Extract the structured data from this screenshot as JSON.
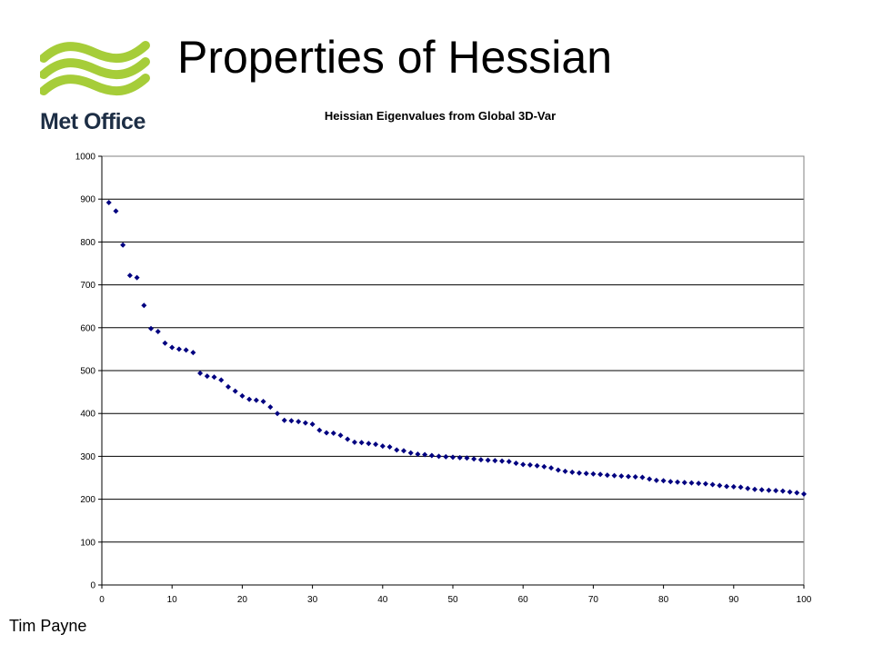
{
  "slide": {
    "title": "Properties of Hessian",
    "footer": "Tim Payne"
  },
  "logo": {
    "name": "Met Office",
    "icon": "met-office-wave-logo",
    "wave_color": "#a6cd39",
    "text_color": "#1d2e45"
  },
  "chart_data": {
    "type": "scatter",
    "title": "Heissian Eigenvalues from Global 3D-Var",
    "xlabel": "",
    "ylabel": "",
    "xlim": [
      0,
      100
    ],
    "ylim": [
      0,
      1000
    ],
    "x_ticks": [
      "0",
      "10",
      "20",
      "30",
      "40",
      "50",
      "60",
      "70",
      "80",
      "90",
      "100"
    ],
    "y_ticks": [
      "0",
      "100",
      "200",
      "300",
      "400",
      "500",
      "600",
      "700",
      "800",
      "900",
      "1000"
    ],
    "grid": "horizontal",
    "legend": "none",
    "marker": "diamond",
    "marker_color": "#000080",
    "x": [
      1,
      2,
      3,
      4,
      5,
      6,
      7,
      8,
      9,
      10,
      11,
      12,
      13,
      14,
      15,
      16,
      17,
      18,
      19,
      20,
      21,
      22,
      23,
      24,
      25,
      26,
      27,
      28,
      29,
      30,
      31,
      32,
      33,
      34,
      35,
      36,
      37,
      38,
      39,
      40,
      41,
      42,
      43,
      44,
      45,
      46,
      47,
      48,
      49,
      50,
      51,
      52,
      53,
      54,
      55,
      56,
      57,
      58,
      59,
      60,
      61,
      62,
      63,
      64,
      65,
      66,
      67,
      68,
      69,
      70,
      71,
      72,
      73,
      74,
      75,
      76,
      77,
      78,
      79,
      80,
      81,
      82,
      83,
      84,
      85,
      86,
      87,
      88,
      89,
      90,
      91,
      92,
      93,
      94,
      95,
      96,
      97,
      98,
      99,
      100
    ],
    "y": [
      892,
      872,
      793,
      722,
      717,
      652,
      598,
      591,
      564,
      554,
      550,
      548,
      542,
      494,
      487,
      485,
      478,
      462,
      452,
      441,
      433,
      431,
      428,
      415,
      400,
      384,
      383,
      381,
      378,
      375,
      361,
      355,
      354,
      349,
      340,
      333,
      332,
      330,
      328,
      324,
      322,
      315,
      313,
      308,
      305,
      304,
      302,
      300,
      299,
      298,
      297,
      296,
      294,
      292,
      291,
      290,
      289,
      288,
      284,
      281,
      280,
      278,
      276,
      273,
      268,
      265,
      263,
      261,
      260,
      259,
      258,
      256,
      255,
      254,
      253,
      252,
      251,
      247,
      244,
      243,
      241,
      240,
      239,
      238,
      237,
      236,
      234,
      232,
      230,
      229,
      228,
      225,
      223,
      222,
      221,
      220,
      219,
      217,
      215,
      212
    ]
  }
}
